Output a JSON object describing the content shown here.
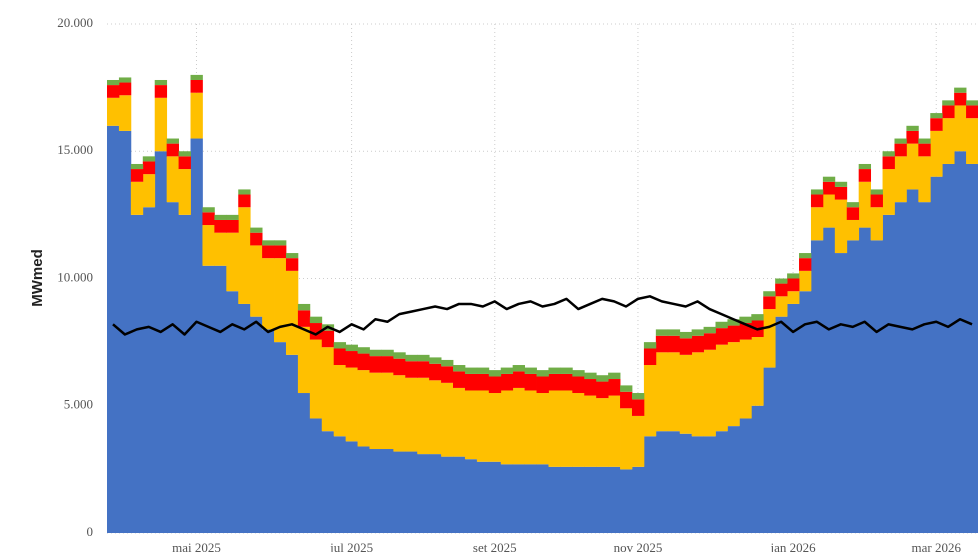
{
  "chart_data": {
    "type": "bar",
    "stacked": true,
    "y_label": "MWmed",
    "categories": [
      null,
      null,
      null,
      null,
      null,
      null,
      null,
      "mai 2025",
      null,
      null,
      null,
      null,
      null,
      null,
      null,
      null,
      null,
      null,
      null,
      null,
      "jul 2025",
      null,
      null,
      null,
      null,
      null,
      null,
      null,
      null,
      null,
      null,
      null,
      "set 2025",
      null,
      null,
      null,
      null,
      null,
      null,
      null,
      null,
      null,
      null,
      null,
      "nov 2025",
      null,
      null,
      null,
      null,
      null,
      null,
      null,
      null,
      null,
      null,
      null,
      null,
      "jan 2026",
      null,
      null,
      null,
      null,
      null,
      null,
      null,
      null,
      null,
      null,
      null,
      "mar 2026",
      null,
      null,
      null
    ],
    "ylim": [
      0,
      20000
    ],
    "yticks": [
      0,
      {
        "value": 5000,
        "label": "5.000"
      },
      {
        "value": 10000,
        "label": "10.000"
      },
      {
        "value": 15000,
        "label": "15.000"
      },
      {
        "value": 20000,
        "label": "20.000"
      }
    ],
    "grid": true,
    "series": [
      {
        "color": "#4472c4",
        "values": [
          16000,
          15800,
          12500,
          12800,
          15000,
          13000,
          12500,
          15500,
          10500,
          10500,
          9500,
          9000,
          8500,
          8000,
          7500,
          7000,
          5500,
          4500,
          4000,
          3800,
          3600,
          3400,
          3300,
          3300,
          3200,
          3200,
          3100,
          3100,
          3000,
          3000,
          2900,
          2800,
          2800,
          2700,
          2700,
          2700,
          2700,
          2600,
          2600,
          2600,
          2600,
          2600,
          2600,
          2500,
          2600,
          3800,
          4000,
          4000,
          3900,
          3800,
          3800,
          4000,
          4200,
          4500,
          5000,
          6500,
          8500,
          9000,
          9500,
          11500,
          12000,
          11000,
          11500,
          12000,
          11500,
          12500,
          13000,
          13500,
          13000,
          14000,
          14500,
          15000,
          14500
        ]
      },
      {
        "color": "#ffc000",
        "values": [
          1100,
          1400,
          1300,
          1300,
          2100,
          1800,
          1800,
          1800,
          1600,
          1300,
          2300,
          3800,
          2800,
          2800,
          3300,
          3300,
          2600,
          3100,
          3300,
          2800,
          2900,
          3000,
          3000,
          3000,
          3000,
          2900,
          3000,
          2900,
          2900,
          2700,
          2700,
          2800,
          2700,
          2900,
          3000,
          2900,
          2800,
          3000,
          3000,
          2900,
          2800,
          2700,
          2800,
          2400,
          2000,
          2800,
          3100,
          3100,
          3100,
          3300,
          3400,
          3400,
          3300,
          3100,
          2700,
          2300,
          800,
          500,
          800,
          1300,
          1300,
          2100,
          800,
          1800,
          1300,
          1800,
          1800,
          1800,
          1800,
          1800,
          1800,
          1800,
          1800
        ]
      },
      {
        "color": "#ff0000",
        "values": [
          500,
          500,
          500,
          500,
          500,
          500,
          500,
          500,
          500,
          500,
          500,
          500,
          500,
          500,
          500,
          500,
          650,
          650,
          650,
          650,
          650,
          650,
          650,
          650,
          650,
          650,
          650,
          650,
          650,
          650,
          650,
          650,
          650,
          650,
          650,
          650,
          650,
          650,
          650,
          650,
          650,
          650,
          650,
          650,
          650,
          650,
          650,
          650,
          650,
          650,
          650,
          650,
          650,
          650,
          650,
          500,
          500,
          500,
          500,
          500,
          500,
          500,
          500,
          500,
          500,
          500,
          500,
          500,
          500,
          500,
          500,
          500,
          500
        ]
      },
      {
        "color": "#70ad47",
        "values": [
          200,
          200,
          200,
          200,
          200,
          200,
          200,
          200,
          200,
          200,
          200,
          200,
          200,
          200,
          200,
          200,
          250,
          250,
          250,
          250,
          250,
          250,
          250,
          250,
          250,
          250,
          250,
          250,
          250,
          250,
          250,
          250,
          250,
          250,
          250,
          250,
          250,
          250,
          250,
          250,
          250,
          250,
          250,
          250,
          250,
          250,
          250,
          250,
          250,
          250,
          250,
          250,
          250,
          250,
          250,
          200,
          200,
          200,
          200,
          200,
          200,
          200,
          200,
          200,
          200,
          200,
          200,
          200,
          200,
          200,
          200,
          200,
          200
        ]
      },
      {
        "type": "line",
        "color": "#000000",
        "values": [
          8200,
          7800,
          8000,
          8100,
          7900,
          8200,
          7800,
          8300,
          8100,
          7900,
          8200,
          8000,
          8300,
          7900,
          8100,
          8200,
          8000,
          7800,
          8100,
          7900,
          8200,
          8000,
          8400,
          8300,
          8600,
          8700,
          8800,
          8900,
          8800,
          9000,
          9000,
          8900,
          9100,
          8800,
          9000,
          9100,
          8900,
          9000,
          9200,
          8800,
          9000,
          9200,
          9100,
          8900,
          9200,
          9300,
          9100,
          9000,
          8900,
          9100,
          8800,
          8600,
          8400,
          8200,
          8000,
          8100,
          8300,
          7900,
          8200,
          8300,
          8000,
          8200,
          8100,
          8300,
          7900,
          8200,
          8100,
          8000,
          8200,
          8300,
          8100,
          8400,
          8200
        ]
      }
    ]
  }
}
